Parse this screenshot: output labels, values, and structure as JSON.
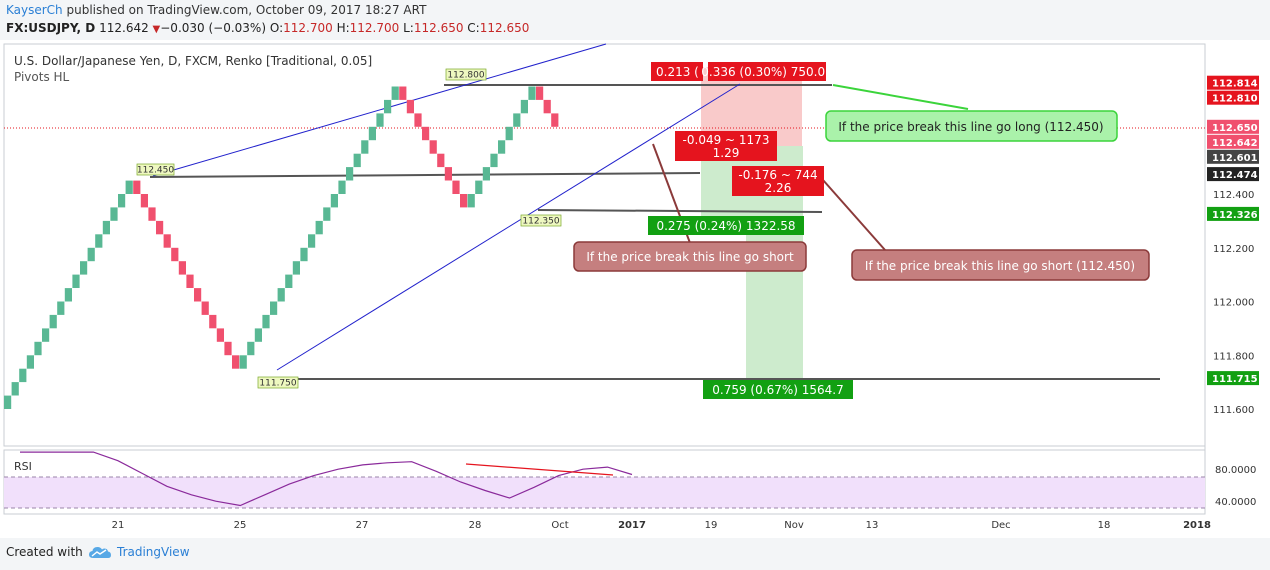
{
  "header": {
    "author": "KayserCh",
    "published": " published on TradingView.com, October 09, 2017 18:27 ART",
    "symbol": "FX:USDJPY, D",
    "last": "112.642",
    "change_arrow": "▼",
    "change": "−0.030 (−0.03%)",
    "o_label": "O:",
    "o_val": "112.700",
    "h_label": "H:",
    "h_val": "112.700",
    "l_label": "L:",
    "l_val": "112.650",
    "c_label": "C:",
    "c_val": "112.650"
  },
  "legend": {
    "title": "U.S. Dollar/Japanese Yen, D, FXCM, Renko [Traditional, 0.05]",
    "indicator": "Pivots HL"
  },
  "rsi_label": "RSI",
  "footer": {
    "created": "Created with",
    "brand": "TradingView",
    "logo_icon": "tradingview-cloud-icon"
  },
  "colors": {
    "up": "#59b894",
    "down": "#f0506e",
    "trend": "#2222cc",
    "level": "#222222",
    "accent": "#2a7fd5"
  },
  "chart_data": [
    {
      "type": "candlestick",
      "renko_brick_size": 0.05,
      "title": "U.S. Dollar/Japanese Yen, D, FXCM, Renko [Traditional, 0.05]",
      "ylim": [
        111.5,
        112.95
      ],
      "y_ticks": [
        "112.400",
        "112.200",
        "112.000",
        "111.800",
        "111.600"
      ],
      "x_ticks": [
        "21",
        "25",
        "27",
        "28",
        "Oct",
        "2017",
        "19",
        "Nov",
        "13",
        "Dec",
        "18",
        "2018"
      ],
      "brick_sequence": [
        {
          "dir": "up",
          "from": 111.6,
          "to": 112.45
        },
        {
          "dir": "down",
          "from": 112.45,
          "to": 111.75
        },
        {
          "dir": "up",
          "from": 111.75,
          "to": 112.8
        },
        {
          "dir": "down",
          "from": 112.8,
          "to": 112.35
        },
        {
          "dir": "up",
          "from": 112.35,
          "to": 112.8
        },
        {
          "dir": "down",
          "from": 112.8,
          "to": 112.65
        }
      ],
      "pivot_labels": [
        "112.450",
        "111.750",
        "112.800",
        "112.350"
      ],
      "price_scale_labels": [
        {
          "text": "112.814",
          "value": 112.814,
          "color": "#e5141e"
        },
        {
          "text": "112.810",
          "value": 112.81,
          "color": "#e5141e"
        },
        {
          "text": "112.650",
          "value": 112.65,
          "color": "#f0506e"
        },
        {
          "text": "112.642",
          "value": 112.642,
          "color": "#f0506e"
        },
        {
          "text": "112.601",
          "value": 112.601,
          "color": "#444444"
        },
        {
          "text": "112.474",
          "value": 112.474,
          "color": "#222222"
        },
        {
          "text": "112.326",
          "value": 112.326,
          "color": "#12a012"
        },
        {
          "text": "111.715",
          "value": 111.715,
          "color": "#12a012"
        }
      ],
      "horizontal_lines": [
        112.81,
        112.474,
        112.326,
        111.715
      ],
      "measure_labels": [
        {
          "text": "0.213 (",
          "bg": "#e5141e"
        },
        {
          "text": "0.336 (0.30%) 750.02",
          "bg": "#e5141e"
        },
        {
          "text": "-0.049 ~ 1173",
          "sub": "1.29",
          "bg": "#e5141e"
        },
        {
          "text": "-0.176 ~ 744",
          "sub": "2.26",
          "bg": "#e5141e"
        },
        {
          "text": "0.275 (0.24%) 1322.58",
          "bg": "#12a012"
        },
        {
          "text": "0.759 (0.67%) 1564.7",
          "bg": "#12a012"
        }
      ],
      "annotations": [
        "If the price break this line go long (112.450)",
        "If the price break this line go short",
        "If the price break this line go short (112.450)"
      ]
    },
    {
      "type": "line",
      "name": "RSI",
      "ylim": [
        30,
        90
      ],
      "y_ticks": [
        "80.0000",
        "40.0000"
      ],
      "values": [
        88,
        88,
        88,
        88,
        80,
        68,
        56,
        48,
        42,
        38,
        48,
        58,
        66,
        72,
        76,
        78,
        79,
        70,
        60,
        52,
        45,
        55,
        66,
        72,
        74,
        67
      ]
    }
  ]
}
